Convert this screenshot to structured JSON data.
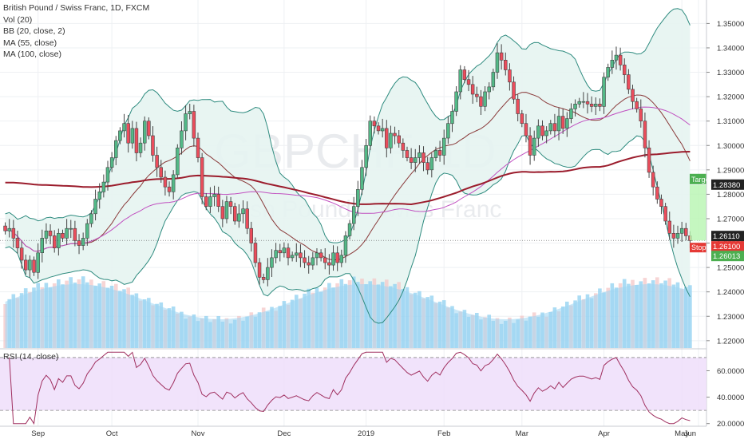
{
  "legend": {
    "title": "British Pound / Swiss Franc, 1D, FXCM",
    "vol": "Vol (20)",
    "bb": "BB (20, close, 2)",
    "ma55": "MA (55, close)",
    "ma100": "MA (100, close)"
  },
  "watermark": {
    "symbol": "GBPCHF, 1D",
    "name": "British Pound / Swiss Franc"
  },
  "rsi_legend": "RSI (14, close)",
  "colors": {
    "up": "#53b987",
    "down": "#eb4d5c",
    "bb": "#2e8b7f",
    "bb_fill": "#e6f4f1",
    "ma55": "#c050c0",
    "ma100": "#9b1c2c",
    "ma20": "#8a3a3a",
    "volume": "#8fd0f0",
    "rsi": "#a03060",
    "rsi_band": "#f0e0fb",
    "target_green": "#b7f5b0",
    "label_red": "#e53935",
    "label_dark": "#222222",
    "label_green": "#4caf50"
  },
  "price_labels": [
    {
      "text": "1.28380",
      "kind": "dark"
    },
    {
      "text": "1.26110",
      "kind": "dark"
    },
    {
      "text": "1.26100",
      "kind": "red"
    },
    {
      "text": "1.26013",
      "kind": "green"
    }
  ],
  "target_label": "Target",
  "stop_label": "Stop",
  "chart_data": {
    "type": "candlestick",
    "title": "British Pound / Swiss Franc, 1D, FXCM",
    "price_axis": {
      "ticks": [
        "1.35000",
        "1.34000",
        "1.33000",
        "1.32000",
        "1.31000",
        "1.30000",
        "1.29000",
        "1.28000",
        "1.27000",
        "1.26000",
        "1.25000",
        "1.24000",
        "1.23000",
        "1.22000"
      ],
      "range": [
        1.217,
        1.357
      ]
    },
    "rsi_axis": {
      "ticks": [
        "60.0000",
        "40.0000",
        "20.0000"
      ],
      "range": [
        18,
        76
      ],
      "bands": [
        30,
        70
      ]
    },
    "x_labels": [
      "Sep",
      "Oct",
      "Nov",
      "Dec",
      "2019",
      "Feb",
      "Mar",
      "Apr",
      "May",
      "Jun"
    ],
    "closes": [
      1.265,
      1.266,
      1.262,
      1.258,
      1.253,
      1.249,
      1.253,
      1.248,
      1.256,
      1.262,
      1.265,
      1.263,
      1.258,
      1.264,
      1.262,
      1.266,
      1.266,
      1.261,
      1.259,
      1.262,
      1.268,
      1.272,
      1.278,
      1.281,
      1.285,
      1.291,
      1.295,
      1.302,
      1.306,
      1.309,
      1.301,
      1.307,
      1.297,
      1.301,
      1.31,
      1.304,
      1.296,
      1.291,
      1.287,
      1.283,
      1.281,
      1.288,
      1.299,
      1.306,
      1.313,
      1.314,
      1.303,
      1.295,
      1.279,
      1.275,
      1.279,
      1.28,
      1.275,
      1.27,
      1.277,
      1.275,
      1.269,
      1.272,
      1.274,
      1.266,
      1.26,
      1.252,
      1.246,
      1.245,
      1.25,
      1.254,
      1.257,
      1.256,
      1.258,
      1.254,
      1.255,
      1.256,
      1.254,
      1.252,
      1.251,
      1.254,
      1.256,
      1.254,
      1.252,
      1.251,
      1.256,
      1.252,
      1.255,
      1.263,
      1.268,
      1.275,
      1.282,
      1.291,
      1.3,
      1.31,
      1.308,
      1.306,
      1.307,
      1.299,
      1.305,
      1.304,
      1.301,
      1.298,
      1.295,
      1.293,
      1.295,
      1.297,
      1.293,
      1.29,
      1.295,
      1.298,
      1.296,
      1.303,
      1.309,
      1.314,
      1.322,
      1.331,
      1.327,
      1.325,
      1.321,
      1.32,
      1.316,
      1.322,
      1.324,
      1.33,
      1.338,
      1.335,
      1.331,
      1.326,
      1.319,
      1.313,
      1.309,
      1.304,
      1.296,
      1.303,
      1.308,
      1.304,
      1.306,
      1.309,
      1.306,
      1.312,
      1.307,
      1.311,
      1.315,
      1.317,
      1.318,
      1.318,
      1.317,
      1.316,
      1.317,
      1.316,
      1.328,
      1.332,
      1.335,
      1.337,
      1.333,
      1.329,
      1.323,
      1.318,
      1.315,
      1.31,
      1.299,
      1.289,
      1.283,
      1.278,
      1.275,
      1.269,
      1.264,
      1.262,
      1.264,
      1.266,
      1.263,
      1.261
    ]
  }
}
